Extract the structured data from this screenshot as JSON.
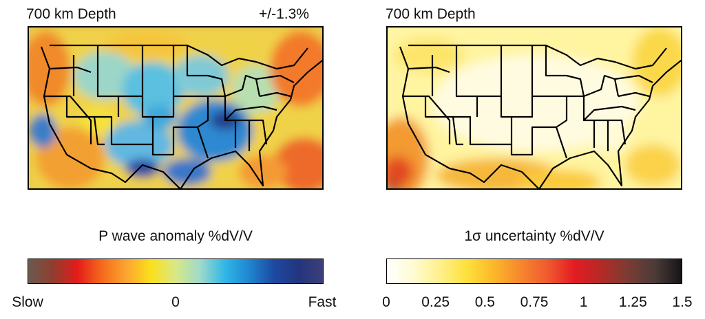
{
  "left_panel": {
    "title": "700 km Depth",
    "range_label": "+/-1.3%",
    "colorbar_title": "P wave anomaly %dV/V",
    "colorbar_colors": [
      "#6b5a4e",
      "#8f3e2e",
      "#e41b1b",
      "#f56a1b",
      "#fba531",
      "#fbe01c",
      "#d9e886",
      "#9fdacb",
      "#31b7e8",
      "#1e86cf",
      "#1d4aa1",
      "#23357f",
      "#3d3f79"
    ],
    "ticks": [
      "Slow",
      "0",
      "Fast"
    ]
  },
  "right_panel": {
    "title": "700 km Depth",
    "colorbar_title": "1σ uncertainty %dV/V",
    "colorbar_colors": [
      "#ffffff",
      "#fffbd2",
      "#fff08a",
      "#fde03a",
      "#fbb72a",
      "#f6872d",
      "#ef5a2e",
      "#e41b23",
      "#b52a26",
      "#7a3c34",
      "#4c3b38",
      "#151515"
    ],
    "ticks": [
      "0",
      "0.25",
      "0.5",
      "0.75",
      "1",
      "1.25",
      "1.5"
    ]
  }
}
